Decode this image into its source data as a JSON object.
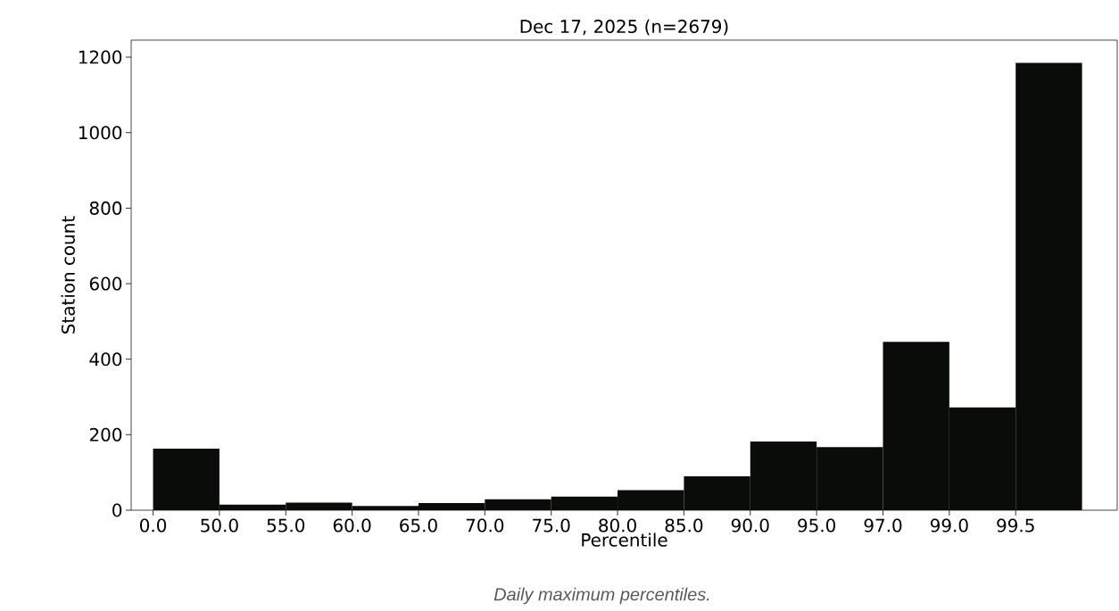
{
  "chart_data": {
    "type": "bar",
    "title": "Dec 17, 2025 (n=2679)",
    "xlabel": "Percentile",
    "ylabel": "Station count",
    "categories": [
      "0.0",
      "50.0",
      "55.0",
      "60.0",
      "65.0",
      "70.0",
      "75.0",
      "80.0",
      "85.0",
      "90.0",
      "95.0",
      "97.0",
      "99.0",
      "99.5"
    ],
    "values": [
      163,
      15,
      20,
      11,
      19,
      29,
      36,
      53,
      90,
      182,
      167,
      446,
      272,
      1185
    ],
    "color": "#0a0c0a",
    "ylim": [
      0,
      1245
    ],
    "yticks": [
      0,
      200,
      400,
      600,
      800,
      1000,
      1200
    ],
    "annotations": [
      "Daily maximum percentiles."
    ]
  }
}
